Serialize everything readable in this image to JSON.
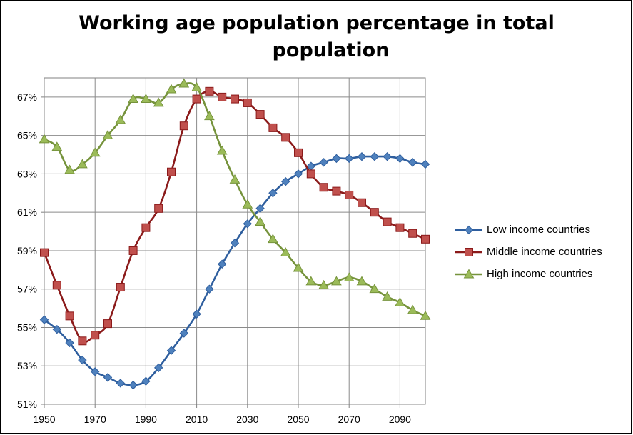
{
  "chart_data": {
    "type": "line",
    "title": [
      "Working age population percentage in total",
      "population"
    ],
    "xlabel": "",
    "ylabel": "",
    "xlim": [
      1950,
      2100
    ],
    "ylim": [
      51,
      68
    ],
    "x_ticks": [
      1950,
      1970,
      1990,
      2010,
      2030,
      2050,
      2070,
      2090
    ],
    "y_ticks": [
      51,
      53,
      55,
      57,
      59,
      61,
      63,
      65,
      67
    ],
    "y_tick_labels": [
      "51%",
      "53%",
      "55%",
      "57%",
      "59%",
      "61%",
      "63%",
      "65%",
      "67%"
    ],
    "x_tick_labels": [
      "1950",
      "1970",
      "1990",
      "2010",
      "2030",
      "2050",
      "2070",
      "2090"
    ],
    "grid": "both",
    "legend_position": "right",
    "x": [
      1950,
      1955,
      1960,
      1965,
      1970,
      1975,
      1980,
      1985,
      1990,
      1995,
      2000,
      2005,
      2010,
      2015,
      2020,
      2025,
      2030,
      2035,
      2040,
      2045,
      2050,
      2055,
      2060,
      2065,
      2070,
      2075,
      2080,
      2085,
      2090,
      2095,
      2100
    ],
    "series": [
      {
        "name": "Low income countries",
        "color": "#2E5E9E",
        "marker": "diamond",
        "marker_color": "#4F81BD",
        "values": [
          55.4,
          54.9,
          54.2,
          53.3,
          52.7,
          52.4,
          52.1,
          52.0,
          52.2,
          52.9,
          53.8,
          54.7,
          55.7,
          57.0,
          58.3,
          59.4,
          60.4,
          61.2,
          62.0,
          62.6,
          63.0,
          63.4,
          63.6,
          63.8,
          63.8,
          63.9,
          63.9,
          63.9,
          63.8,
          63.6,
          63.5
        ]
      },
      {
        "name": "Middle income countries",
        "color": "#8B1A1A",
        "marker": "square",
        "marker_color": "#C0504D",
        "values": [
          58.9,
          57.2,
          55.6,
          54.3,
          54.6,
          55.2,
          57.1,
          59.0,
          60.2,
          61.2,
          63.1,
          65.5,
          66.9,
          67.3,
          67.0,
          66.9,
          66.7,
          66.1,
          65.4,
          64.9,
          64.1,
          63.0,
          62.3,
          62.1,
          61.9,
          61.5,
          61.0,
          60.5,
          60.2,
          59.9,
          59.6
        ]
      },
      {
        "name": "High income countries",
        "color": "#76933C",
        "marker": "triangle",
        "marker_color": "#9BBB59",
        "values": [
          64.8,
          64.4,
          63.2,
          63.5,
          64.1,
          65.0,
          65.8,
          66.9,
          66.9,
          66.7,
          67.4,
          67.7,
          67.5,
          66.0,
          64.2,
          62.7,
          61.4,
          60.5,
          59.6,
          58.9,
          58.1,
          57.4,
          57.2,
          57.4,
          57.6,
          57.4,
          57.0,
          56.6,
          56.3,
          55.9,
          55.6
        ]
      }
    ]
  }
}
